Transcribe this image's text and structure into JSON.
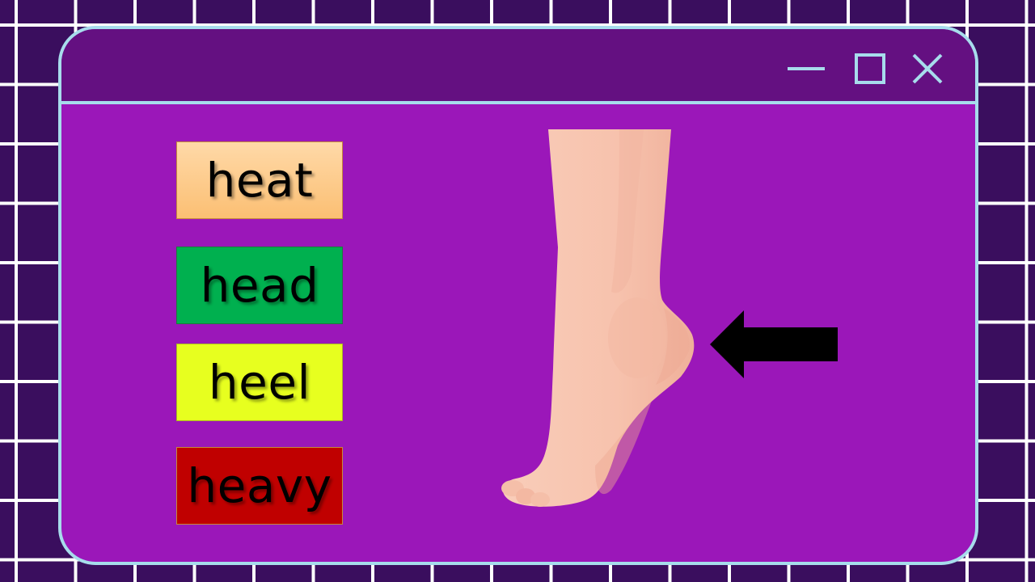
{
  "window": {
    "controls": {
      "minimize_icon": "minimize-icon",
      "maximize_icon": "maximize-icon",
      "close_icon": "close-icon"
    }
  },
  "choices": [
    {
      "label": "heat",
      "color": "#fbc980"
    },
    {
      "label": "head",
      "color": "#00b04f"
    },
    {
      "label": "heel",
      "color": "#e7ff1f"
    },
    {
      "label": "heavy",
      "color": "#c00000"
    }
  ],
  "illustration": {
    "subject": "foot-illustration",
    "pointer": "arrow-left-icon"
  },
  "colors": {
    "background": "#3a0e5e",
    "window_border": "#a7dcec",
    "title_bar": "#641081",
    "window_body": "#9b17b9",
    "skin": "#f7c2ad"
  }
}
